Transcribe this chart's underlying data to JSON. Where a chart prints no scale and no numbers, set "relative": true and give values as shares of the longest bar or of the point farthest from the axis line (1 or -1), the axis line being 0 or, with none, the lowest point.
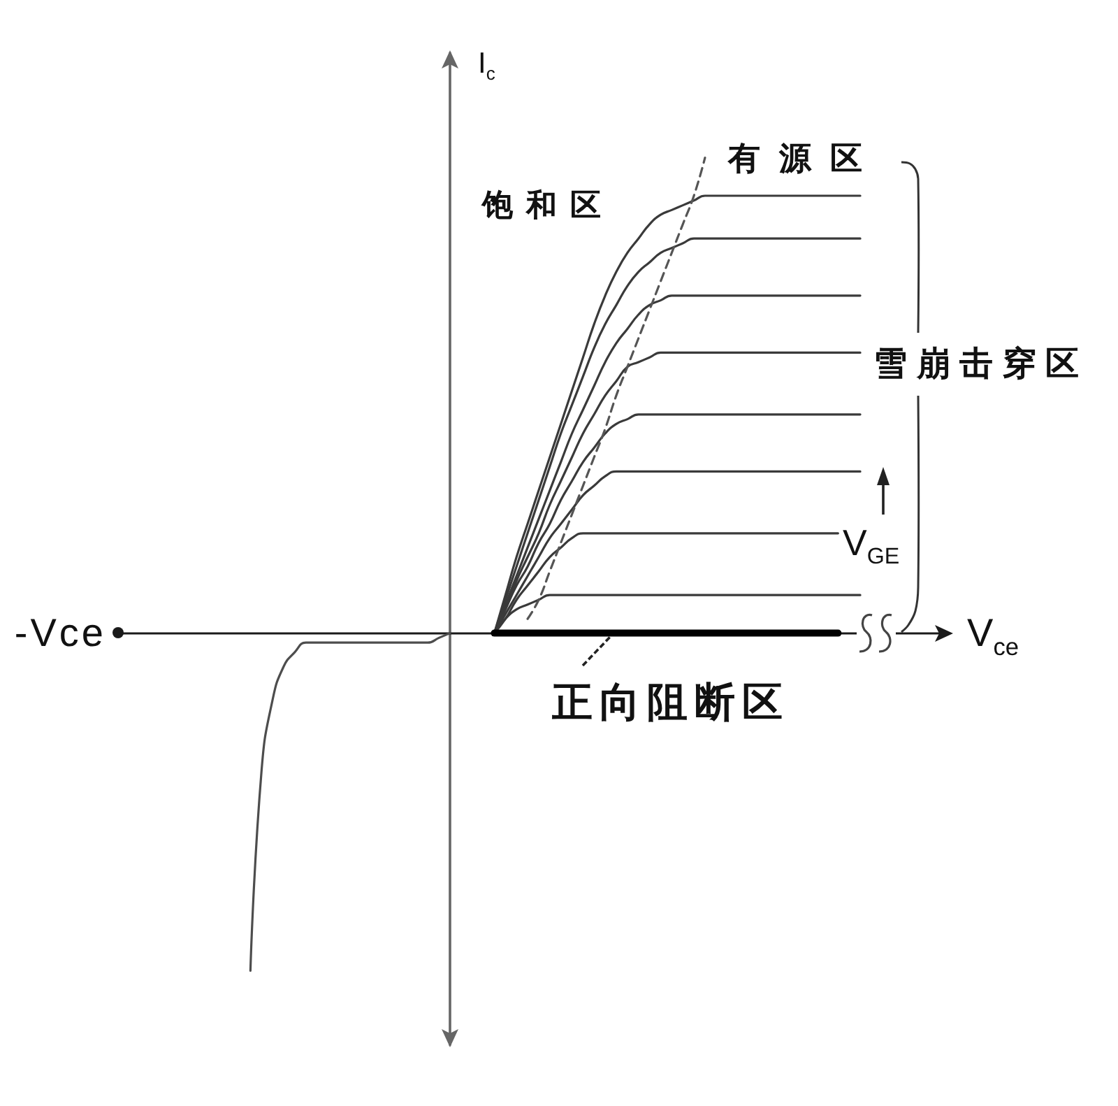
{
  "chart_data": {
    "type": "line",
    "relative": true,
    "xlabel": "V$_{ce}$",
    "ylabel": "I$_{c}$",
    "annotations": [
      "-Vce",
      "饱和区",
      "有源区",
      "雪崩击穿区",
      "V$_{GE}$",
      "正向阻断区"
    ],
    "categories": [
      null,
      null,
      null,
      null,
      null,
      null,
      null,
      null,
      null,
      null,
      null,
      null,
      null,
      null,
      null,
      null,
      null,
      null,
      null,
      null,
      null,
      null,
      null,
      null,
      null,
      null,
      null,
      null,
      null,
      null,
      null,
      null,
      null,
      null,
      null,
      null,
      null,
      null,
      null,
      null,
      null,
      null,
      null,
      null,
      null,
      null,
      null,
      null,
      null,
      null,
      null,
      null,
      null,
      null,
      null,
      null,
      null,
      null,
      null,
      null,
      null,
      null,
      null,
      null,
      null,
      null,
      null,
      null,
      null,
      null,
      null,
      null,
      null,
      null,
      null,
      null
    ],
    "series": [
      {
        "color": "#4d4d4d",
        "values": [
          null,
          null,
          null,
          null,
          null,
          null,
          null,
          null,
          null,
          null,
          null,
          null,
          -0.71,
          -0.29,
          -0.14,
          -0.07,
          -0.04,
          -0.02,
          -0.02,
          -0.02,
          -0.02,
          -0.02,
          -0.02,
          -0.02,
          -0.02,
          -0.02,
          -0.02,
          -0.02,
          -0.02,
          -0.01,
          0,
          null,
          null,
          null,
          null,
          null,
          null,
          null,
          null,
          null,
          null,
          null,
          null,
          null,
          null,
          null,
          null,
          null,
          null,
          null,
          null,
          null,
          null,
          null,
          null,
          null,
          null,
          null,
          null,
          null,
          null,
          null,
          null,
          null,
          null,
          null,
          null,
          null,
          null,
          null,
          null,
          null,
          null,
          null,
          null,
          null
        ]
      },
      {
        "color": "#3a3a3a",
        "values": [
          null,
          null,
          null,
          null,
          null,
          null,
          null,
          null,
          null,
          null,
          null,
          null,
          null,
          null,
          null,
          null,
          null,
          null,
          null,
          null,
          null,
          null,
          null,
          null,
          null,
          null,
          null,
          null,
          null,
          null,
          null,
          null,
          null,
          null,
          0,
          0.08,
          0.16,
          0.23,
          0.3,
          0.37,
          0.44,
          0.51,
          0.58,
          0.65,
          0.71,
          0.76,
          0.8,
          0.83,
          0.86,
          0.88,
          0.89,
          0.9,
          0.91,
          0.92,
          0.92,
          0.92,
          0.92,
          0.92,
          0.92,
          0.92,
          0.92,
          0.92,
          0.92,
          0.92,
          0.92,
          0.92,
          0.92,
          0.92,
          null,
          null,
          null,
          null,
          null,
          null,
          null,
          null
        ]
      },
      {
        "color": "#3a3a3a",
        "values": [
          null,
          null,
          null,
          null,
          null,
          null,
          null,
          null,
          null,
          null,
          null,
          null,
          null,
          null,
          null,
          null,
          null,
          null,
          null,
          null,
          null,
          null,
          null,
          null,
          null,
          null,
          null,
          null,
          null,
          null,
          null,
          null,
          null,
          null,
          0,
          0.07,
          0.14,
          0.21,
          0.28,
          0.35,
          0.42,
          0.48,
          0.54,
          0.6,
          0.65,
          0.69,
          0.73,
          0.76,
          0.78,
          0.8,
          0.81,
          0.82,
          0.83,
          0.83,
          0.83,
          0.83,
          0.83,
          0.83,
          0.83,
          0.83,
          0.83,
          0.83,
          0.83,
          0.83,
          0.83,
          0.83,
          0.83,
          0.83,
          null,
          null,
          null,
          null,
          null,
          null,
          null,
          null
        ]
      },
      {
        "color": "#3a3a3a",
        "values": [
          null,
          null,
          null,
          null,
          null,
          null,
          null,
          null,
          null,
          null,
          null,
          null,
          null,
          null,
          null,
          null,
          null,
          null,
          null,
          null,
          null,
          null,
          null,
          null,
          null,
          null,
          null,
          null,
          null,
          null,
          null,
          null,
          null,
          null,
          0,
          0.06,
          0.12,
          0.18,
          0.24,
          0.3,
          0.36,
          0.42,
          0.47,
          0.52,
          0.57,
          0.61,
          0.64,
          0.67,
          0.69,
          0.7,
          0.71,
          0.71,
          0.71,
          0.71,
          0.71,
          0.71,
          0.71,
          0.71,
          0.71,
          0.71,
          0.71,
          0.71,
          0.71,
          0.71,
          0.71,
          0.71,
          0.71,
          0.71,
          null,
          null,
          null,
          null,
          null,
          null,
          null,
          null
        ]
      },
      {
        "color": "#3a3a3a",
        "values": [
          null,
          null,
          null,
          null,
          null,
          null,
          null,
          null,
          null,
          null,
          null,
          null,
          null,
          null,
          null,
          null,
          null,
          null,
          null,
          null,
          null,
          null,
          null,
          null,
          null,
          null,
          null,
          null,
          null,
          null,
          null,
          null,
          null,
          null,
          0,
          0.05,
          0.11,
          0.16,
          0.21,
          0.27,
          0.32,
          0.37,
          0.42,
          0.46,
          0.5,
          0.53,
          0.56,
          0.57,
          0.58,
          0.59,
          0.59,
          0.59,
          0.59,
          0.59,
          0.59,
          0.59,
          0.59,
          0.59,
          0.59,
          0.59,
          0.59,
          0.59,
          0.59,
          0.59,
          0.59,
          0.59,
          0.59,
          0.59,
          null,
          null,
          null,
          null,
          null,
          null,
          null,
          null
        ]
      },
      {
        "color": "#3a3a3a",
        "values": [
          null,
          null,
          null,
          null,
          null,
          null,
          null,
          null,
          null,
          null,
          null,
          null,
          null,
          null,
          null,
          null,
          null,
          null,
          null,
          null,
          null,
          null,
          null,
          null,
          null,
          null,
          null,
          null,
          null,
          null,
          null,
          null,
          null,
          null,
          0,
          0.05,
          0.1,
          0.14,
          0.19,
          0.23,
          0.28,
          0.32,
          0.36,
          0.39,
          0.42,
          0.44,
          0.45,
          0.46,
          0.46,
          0.46,
          0.46,
          0.46,
          0.46,
          0.46,
          0.46,
          0.46,
          0.46,
          0.46,
          0.46,
          0.46,
          0.46,
          0.46,
          0.46,
          0.46,
          0.46,
          0.46,
          0.46,
          0.46,
          null,
          null,
          null,
          null,
          null,
          null,
          null,
          null
        ]
      },
      {
        "color": "#3a3a3a",
        "values": [
          null,
          null,
          null,
          null,
          null,
          null,
          null,
          null,
          null,
          null,
          null,
          null,
          null,
          null,
          null,
          null,
          null,
          null,
          null,
          null,
          null,
          null,
          null,
          null,
          null,
          null,
          null,
          null,
          null,
          null,
          null,
          null,
          null,
          null,
          0,
          0.04,
          0.08,
          0.12,
          0.16,
          0.2,
          0.23,
          0.26,
          0.29,
          0.31,
          0.33,
          0.34,
          0.34,
          0.34,
          0.34,
          0.34,
          0.34,
          0.34,
          0.34,
          0.34,
          0.34,
          0.34,
          0.34,
          0.34,
          0.34,
          0.34,
          0.34,
          0.34,
          0.34,
          0.34,
          0.34,
          0.34,
          0.34,
          0.34,
          null,
          null,
          null,
          null,
          null,
          null,
          null,
          null
        ]
      },
      {
        "color": "#3a3a3a",
        "values": [
          null,
          null,
          null,
          null,
          null,
          null,
          null,
          null,
          null,
          null,
          null,
          null,
          null,
          null,
          null,
          null,
          null,
          null,
          null,
          null,
          null,
          null,
          null,
          null,
          null,
          null,
          null,
          null,
          null,
          null,
          null,
          null,
          null,
          null,
          0,
          0.03,
          0.07,
          0.1,
          0.13,
          0.16,
          0.18,
          0.2,
          0.21,
          0.21,
          0.21,
          0.21,
          0.21,
          0.21,
          0.21,
          0.21,
          0.21,
          0.21,
          0.21,
          0.21,
          0.21,
          0.21,
          0.21,
          0.21,
          0.21,
          0.21,
          0.21,
          0.21,
          0.21,
          0.21,
          0.21,
          0.21,
          null,
          null,
          null,
          null,
          null,
          null,
          null,
          null,
          null,
          null
        ]
      },
      {
        "color": "#3a3a3a",
        "values": [
          null,
          null,
          null,
          null,
          null,
          null,
          null,
          null,
          null,
          null,
          null,
          null,
          null,
          null,
          null,
          null,
          null,
          null,
          null,
          null,
          null,
          null,
          null,
          null,
          null,
          null,
          null,
          null,
          null,
          null,
          null,
          null,
          null,
          null,
          0,
          0.03,
          0.05,
          0.06,
          0.07,
          0.08,
          0.08,
          0.08,
          0.08,
          0.08,
          0.08,
          0.08,
          0.08,
          0.08,
          0.08,
          0.08,
          0.08,
          0.08,
          0.08,
          0.08,
          0.08,
          0.08,
          0.08,
          0.08,
          0.08,
          0.08,
          0.08,
          0.08,
          0.08,
          0.08,
          0.08,
          0.08,
          0.08,
          0.08,
          null,
          null,
          null,
          null,
          null,
          null,
          null,
          null
        ]
      },
      {
        "color": "#555555",
        "line_style": "dashed",
        "values": [
          null,
          null,
          null,
          null,
          null,
          null,
          null,
          null,
          null,
          null,
          null,
          null,
          null,
          null,
          null,
          null,
          null,
          null,
          null,
          null,
          null,
          null,
          null,
          null,
          null,
          null,
          null,
          null,
          null,
          null,
          null,
          null,
          null,
          null,
          null,
          null,
          null,
          0.03,
          0.07,
          0.13,
          0.19,
          0.25,
          0.31,
          0.37,
          0.43,
          0.5,
          0.56,
          0.62,
          0.68,
          0.74,
          0.8,
          0.86,
          0.92,
          1,
          null,
          null,
          null,
          null,
          null,
          null,
          null,
          null,
          null,
          null,
          null,
          null,
          null,
          null,
          null,
          null,
          null,
          null,
          null,
          null,
          null,
          null
        ]
      },
      {
        "color": "#000000",
        "values": [
          null,
          null,
          null,
          null,
          null,
          null,
          null,
          null,
          null,
          null,
          null,
          null,
          null,
          null,
          null,
          null,
          null,
          null,
          null,
          null,
          null,
          null,
          null,
          null,
          null,
          null,
          null,
          null,
          null,
          null,
          null,
          null,
          null,
          null,
          0,
          0,
          0,
          0,
          0,
          0,
          0,
          0,
          0,
          0,
          0,
          0,
          0,
          0,
          0,
          0,
          0,
          0,
          0,
          0,
          0,
          0,
          0,
          0,
          0,
          0,
          0,
          0,
          0,
          0,
          0,
          0,
          null,
          null,
          null,
          null,
          null,
          null,
          null,
          null,
          null,
          null
        ]
      }
    ]
  }
}
